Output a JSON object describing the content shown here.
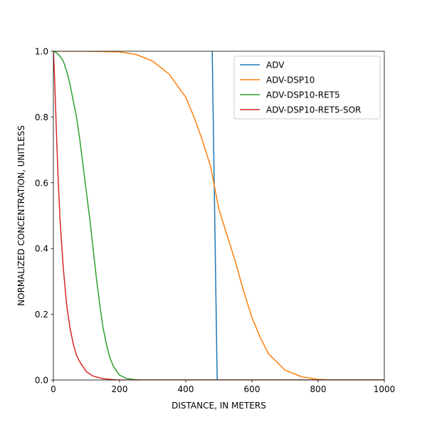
{
  "chart_data": {
    "type": "line",
    "title": "",
    "xlabel": "DISTANCE, IN METERS",
    "ylabel": "NORMALIZED CONCENTRATION, UNITLESS",
    "xlim": [
      0,
      1000
    ],
    "ylim": [
      0,
      1
    ],
    "x_ticks": [
      0,
      200,
      400,
      600,
      800,
      1000
    ],
    "x_tick_labels": [
      "0",
      "200",
      "400",
      "600",
      "800",
      "1000"
    ],
    "y_ticks": [
      0,
      0.2,
      0.4,
      0.6,
      0.8,
      1.0
    ],
    "y_tick_labels": [
      "0.0",
      "0.2",
      "0.4",
      "0.6",
      "0.8",
      "1.0"
    ],
    "grid": false,
    "legend_position": "top-right",
    "series": [
      {
        "name": "ADV",
        "color": "#1f77b4",
        "x": [
          480,
          495
        ],
        "y": [
          1.0,
          0.0
        ]
      },
      {
        "name": "ADV-DSP10",
        "color": "#ff7f0e",
        "x": [
          0,
          100,
          200,
          250,
          300,
          350,
          400,
          425,
          450,
          475,
          500,
          525,
          550,
          575,
          600,
          625,
          650,
          700,
          750,
          800,
          850,
          900,
          1000
        ],
        "y": [
          1.0,
          1.0,
          0.998,
          0.99,
          0.97,
          0.93,
          0.86,
          0.8,
          0.73,
          0.65,
          0.52,
          0.44,
          0.36,
          0.27,
          0.19,
          0.13,
          0.08,
          0.03,
          0.01,
          0.002,
          0.0,
          0.0,
          0.0
        ]
      },
      {
        "name": "ADV-DSP10-RET5",
        "color": "#2ca02c",
        "x": [
          0,
          10,
          20,
          30,
          40,
          50,
          60,
          70,
          80,
          90,
          100,
          110,
          120,
          130,
          140,
          150,
          160,
          170,
          180,
          190,
          200,
          220,
          240,
          260,
          300,
          1000
        ],
        "y": [
          1.0,
          0.995,
          0.985,
          0.97,
          0.94,
          0.9,
          0.85,
          0.8,
          0.73,
          0.65,
          0.57,
          0.49,
          0.4,
          0.31,
          0.23,
          0.16,
          0.11,
          0.07,
          0.045,
          0.028,
          0.015,
          0.005,
          0.002,
          0.0,
          0.0,
          0.0
        ]
      },
      {
        "name": "ADV-DSP10-RET5-SOR",
        "color": "#d62728",
        "x": [
          0,
          2,
          5,
          10,
          15,
          20,
          30,
          40,
          50,
          60,
          70,
          80,
          100,
          120,
          150,
          180,
          200,
          250,
          1000
        ],
        "y": [
          1.0,
          0.96,
          0.88,
          0.73,
          0.6,
          0.49,
          0.34,
          0.23,
          0.16,
          0.11,
          0.075,
          0.055,
          0.025,
          0.012,
          0.004,
          0.001,
          0.0,
          0.0,
          0.0
        ]
      }
    ]
  }
}
